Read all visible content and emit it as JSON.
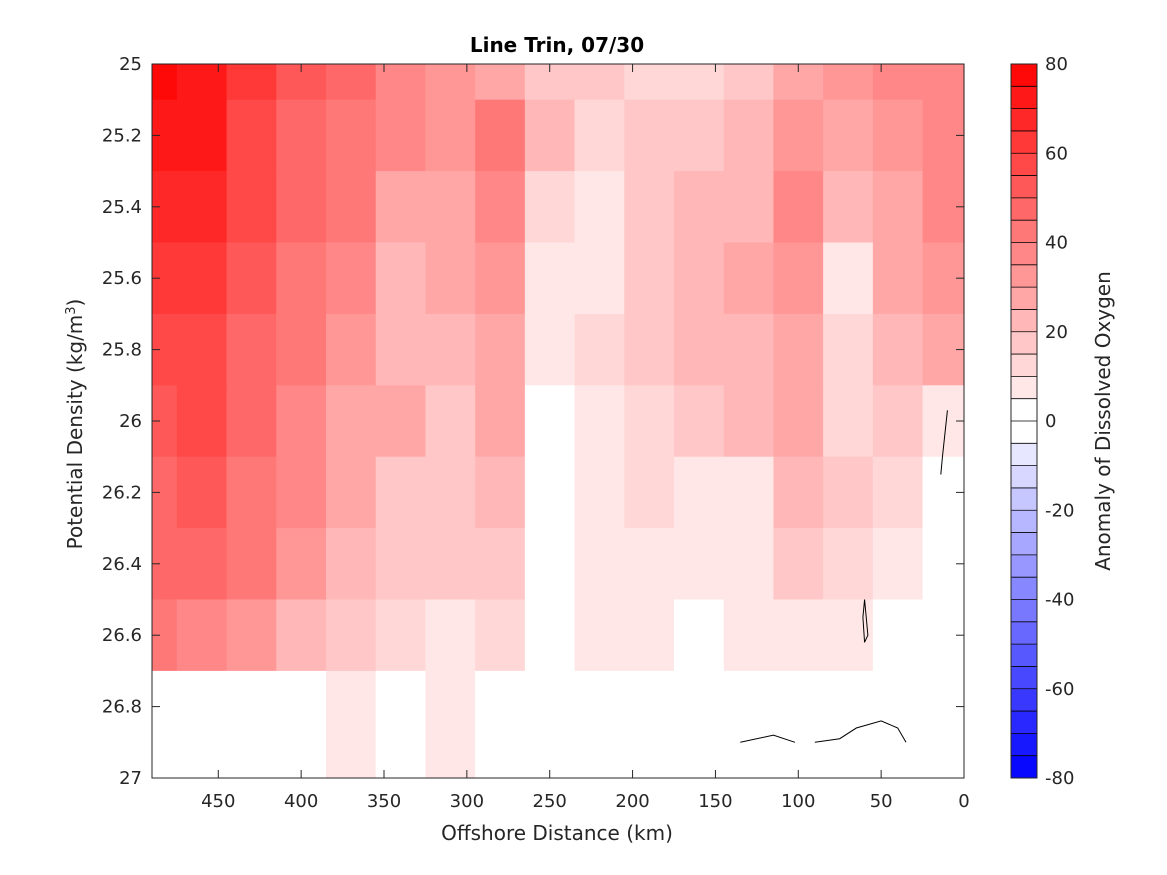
{
  "chart_data": {
    "type": "heatmap",
    "title": "Line Trin, 07/30",
    "xlabel": "Offshore Distance (km)",
    "ylabel_main": "Potential Density (kg/m",
    "ylabel_sup": "3",
    "ylabel_close": ")",
    "colorbar_label": "Anomaly of Dissolved Oxygen",
    "xlim": [
      490,
      0
    ],
    "ylim": [
      25,
      27
    ],
    "y_reversed": true,
    "x_reversed": true,
    "x_ticks": [
      450,
      400,
      350,
      300,
      250,
      200,
      150,
      100,
      50,
      0
    ],
    "y_ticks": [
      25,
      25.2,
      25.4,
      25.6,
      25.8,
      26,
      26.2,
      26.4,
      26.6,
      26.8,
      27
    ],
    "colorbar_range": [
      -80,
      80
    ],
    "colorbar_levels": 32,
    "colorbar_ticks": [
      80,
      60,
      40,
      20,
      0,
      -20,
      -40,
      -60,
      -80
    ],
    "colors": {
      "positive": "#ff0000",
      "negative": "#0000ff",
      "zero": "#ffffff"
    },
    "x_grid": [
      490,
      460,
      430,
      400,
      370,
      340,
      310,
      280,
      250,
      220,
      190,
      160,
      130,
      100,
      70,
      40,
      10
    ],
    "y_grid": [
      25.0,
      25.2,
      25.4,
      25.6,
      25.8,
      26.0,
      26.2,
      26.4,
      26.6,
      26.8
    ],
    "values": [
      [
        75,
        72,
        60,
        50,
        45,
        38,
        30,
        25,
        18,
        15,
        12,
        12,
        15,
        25,
        30,
        35,
        35
      ],
      [
        72,
        70,
        58,
        48,
        42,
        35,
        32,
        40,
        20,
        10,
        15,
        18,
        20,
        30,
        25,
        30,
        38
      ],
      [
        68,
        66,
        55,
        45,
        40,
        28,
        28,
        35,
        10,
        5,
        15,
        20,
        20,
        35,
        20,
        25,
        35
      ],
      [
        60,
        62,
        52,
        42,
        35,
        22,
        25,
        30,
        5,
        8,
        18,
        22,
        25,
        32,
        5,
        25,
        30
      ],
      [
        55,
        58,
        48,
        40,
        32,
        22,
        20,
        28,
        5,
        10,
        15,
        20,
        22,
        28,
        10,
        20,
        25
      ],
      [
        52,
        55,
        45,
        38,
        28,
        25,
        18,
        25,
        3,
        8,
        12,
        18,
        20,
        25,
        12,
        15,
        5
      ],
      [
        48,
        52,
        42,
        35,
        25,
        18,
        18,
        22,
        3,
        5,
        10,
        5,
        8,
        20,
        15,
        10,
        3
      ],
      [
        45,
        48,
        40,
        30,
        22,
        15,
        15,
        18,
        3,
        5,
        8,
        5,
        5,
        15,
        10,
        5,
        2
      ],
      [
        40,
        35,
        30,
        22,
        15,
        10,
        8,
        10,
        2,
        5,
        5,
        3,
        5,
        8,
        5,
        3,
        1
      ],
      [
        0,
        0,
        0,
        0,
        5,
        2,
        5,
        3,
        1,
        3,
        3,
        1,
        0,
        1,
        0,
        0,
        0
      ]
    ]
  }
}
